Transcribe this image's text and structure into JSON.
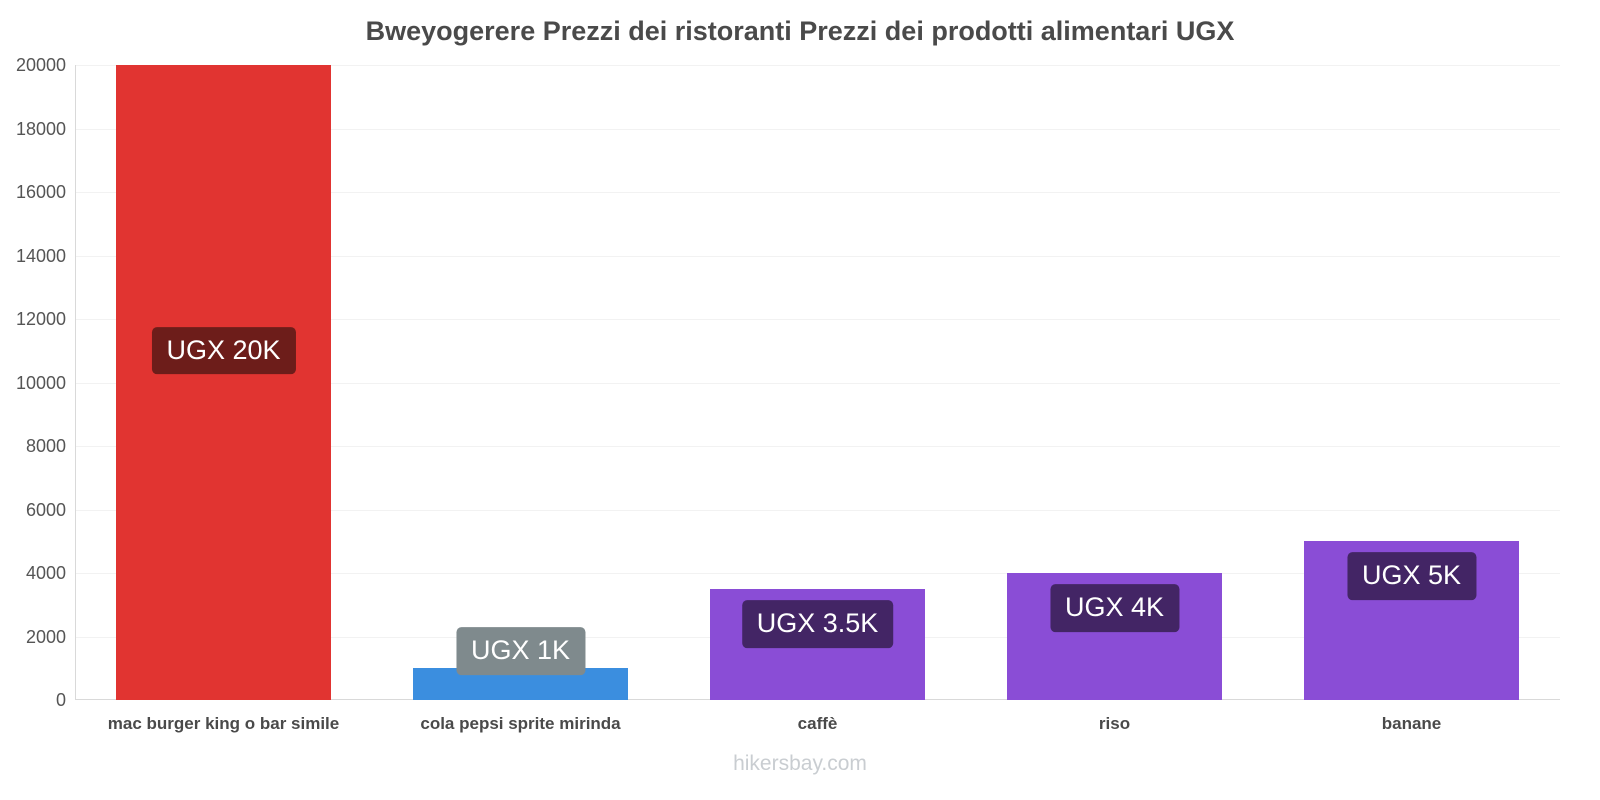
{
  "page": {
    "footer": "hikersbay.com"
  },
  "chart_data": {
    "type": "bar",
    "title": "Bweyogerere Prezzi dei ristoranti Prezzi dei prodotti alimentari UGX",
    "categories": [
      "mac burger king o bar simile",
      "cola pepsi sprite mirinda",
      "caffè",
      "riso",
      "banane"
    ],
    "values": [
      20000,
      1000,
      3500,
      4000,
      5000
    ],
    "bar_labels": [
      "UGX 20K",
      "UGX 1K",
      "UGX 3.5K",
      "UGX 4K",
      "UGX 5K"
    ],
    "bar_colors": [
      "#e13431",
      "#3b8edf",
      "#8a4dd6",
      "#8a4dd6",
      "#8a4dd6"
    ],
    "label_bg_colors": [
      "#6d1d1a",
      "#7f8a8d",
      "#432565",
      "#432565",
      "#432565"
    ],
    "label_text_color": "#ffffff",
    "xlabel": "",
    "ylabel": "",
    "ylim": [
      0,
      20000
    ],
    "yticks": [
      0,
      2000,
      4000,
      6000,
      8000,
      10000,
      12000,
      14000,
      16000,
      18000,
      20000
    ],
    "grid": true,
    "legend": false
  }
}
